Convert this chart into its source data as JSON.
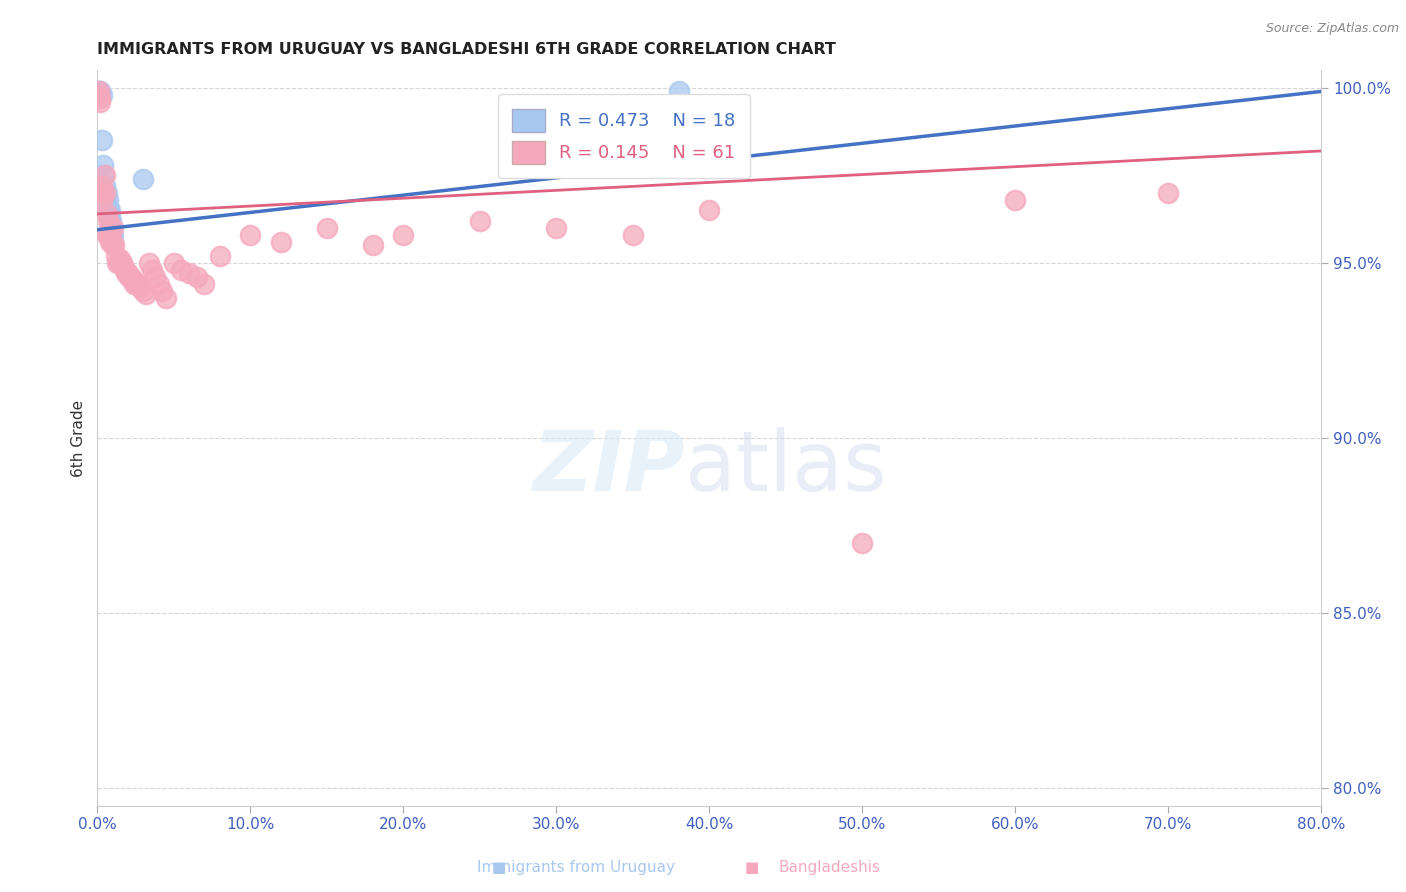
{
  "title": "IMMIGRANTS FROM URUGUAY VS BANGLADESHI 6TH GRADE CORRELATION CHART",
  "source": "Source: ZipAtlas.com",
  "ylabel": "6th Grade",
  "xlim": [
    0.0,
    0.8
  ],
  "ylim": [
    0.795,
    1.005
  ],
  "yticks": [
    0.8,
    0.85,
    0.9,
    0.95,
    1.0
  ],
  "xticks": [
    0.0,
    0.1,
    0.2,
    0.3,
    0.4,
    0.5,
    0.6,
    0.7,
    0.8
  ],
  "uruguay_R": 0.473,
  "uruguay_N": 18,
  "bangladesh_R": 0.145,
  "bangladesh_N": 61,
  "uruguay_color": "#a8c8f0",
  "bangladesh_color": "#f5a8bc",
  "uruguay_line_color": "#4472c4",
  "bangladesh_line_color": "#e06080",
  "legend_label_uruguay": "Immigrants from Uruguay",
  "legend_label_bangladesh": "Bangladeshis",
  "background_color": "#ffffff",
  "grid_color": "#cccccc",
  "axis_label_color": "#4060c0",
  "title_color": "#222222",
  "source_color": "#888888",
  "ylabel_color": "#333333",
  "uruguay_x": [
    0.001,
    0.002,
    0.003,
    0.003,
    0.004,
    0.004,
    0.005,
    0.006,
    0.007,
    0.007,
    0.008,
    0.008,
    0.009,
    0.009,
    0.01,
    0.01,
    0.03,
    0.38
  ],
  "uruguay_y": [
    0.999,
    0.999,
    0.998,
    0.985,
    0.978,
    0.975,
    0.972,
    0.97,
    0.968,
    0.966,
    0.965,
    0.963,
    0.962,
    0.96,
    0.958,
    0.956,
    0.974,
    0.999
  ],
  "bangladesh_x": [
    0.001,
    0.001,
    0.002,
    0.002,
    0.003,
    0.003,
    0.004,
    0.005,
    0.005,
    0.006,
    0.006,
    0.007,
    0.007,
    0.008,
    0.008,
    0.009,
    0.01,
    0.01,
    0.011,
    0.012,
    0.013,
    0.014,
    0.015,
    0.016,
    0.017,
    0.018,
    0.019,
    0.02,
    0.021,
    0.022,
    0.023,
    0.024,
    0.025,
    0.026,
    0.028,
    0.03,
    0.032,
    0.034,
    0.036,
    0.038,
    0.04,
    0.042,
    0.045,
    0.05,
    0.055,
    0.06,
    0.065,
    0.07,
    0.08,
    0.1,
    0.12,
    0.15,
    0.18,
    0.2,
    0.25,
    0.3,
    0.35,
    0.4,
    0.5,
    0.6,
    0.7
  ],
  "bangladesh_y": [
    0.999,
    0.998,
    0.997,
    0.996,
    0.972,
    0.968,
    0.97,
    0.975,
    0.97,
    0.964,
    0.958,
    0.962,
    0.958,
    0.96,
    0.956,
    0.957,
    0.96,
    0.955,
    0.955,
    0.952,
    0.95,
    0.95,
    0.951,
    0.95,
    0.949,
    0.948,
    0.947,
    0.947,
    0.946,
    0.946,
    0.945,
    0.944,
    0.944,
    0.944,
    0.943,
    0.942,
    0.941,
    0.95,
    0.948,
    0.946,
    0.944,
    0.942,
    0.94,
    0.95,
    0.948,
    0.947,
    0.946,
    0.944,
    0.952,
    0.958,
    0.956,
    0.96,
    0.955,
    0.958,
    0.962,
    0.96,
    0.958,
    0.965,
    0.87,
    0.968,
    0.97
  ],
  "trend_uruguay_x0": 0.0,
  "trend_uruguay_y0": 0.9595,
  "trend_uruguay_x1": 0.8,
  "trend_uruguay_y1": 0.999,
  "trend_bangladesh_x0": 0.0,
  "trend_bangladesh_y0": 0.964,
  "trend_bangladesh_x1": 0.8,
  "trend_bangladesh_y1": 0.982
}
